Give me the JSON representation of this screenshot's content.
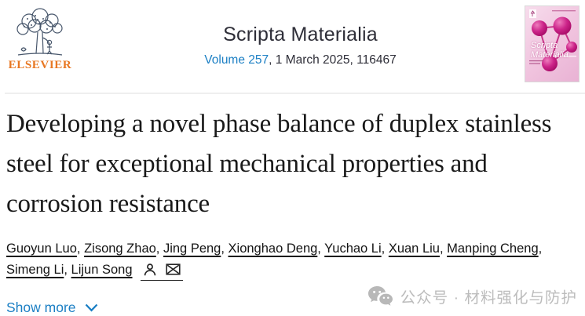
{
  "header": {
    "publisher": "ELSEVIER",
    "journal_title": "Scripta Materialia",
    "volume_link": "Volume 257",
    "issue_info": ", 1 March 2025, 116467",
    "cover_title_line1": "Scripta",
    "cover_title_line2": "Materialia"
  },
  "article": {
    "title": "Developing a novel phase balance of duplex stainless steel for exceptional mechanical properties and corrosion resistance",
    "authors": [
      "Guoyun Luo",
      "Zisong Zhao",
      "Jing Peng",
      "Xionghao Deng",
      "Yuchao Li",
      "Xuan Liu",
      "Manping Cheng",
      "Simeng Li",
      "Lijun Song"
    ],
    "show_more_label": "Show more"
  },
  "watermark": {
    "text": "公众号 · 材料强化与防护"
  },
  "icons": {
    "author_info": "person-icon",
    "correspondence": "envelope-icon",
    "show_more": "chevron-down-icon",
    "watermark": "wechat-icon",
    "publisher_logo": "elsevier-tree-icon"
  },
  "colors": {
    "link_blue": "#1b7fc4",
    "elsevier_orange": "#e87722",
    "title_color": "#191919",
    "text_dark": "#2e2e38",
    "watermark_gray": "#bcbcbc",
    "cover_pink": "#f0c3de",
    "cover_magenta": "#c01478",
    "divider_gray": "#efefef"
  }
}
